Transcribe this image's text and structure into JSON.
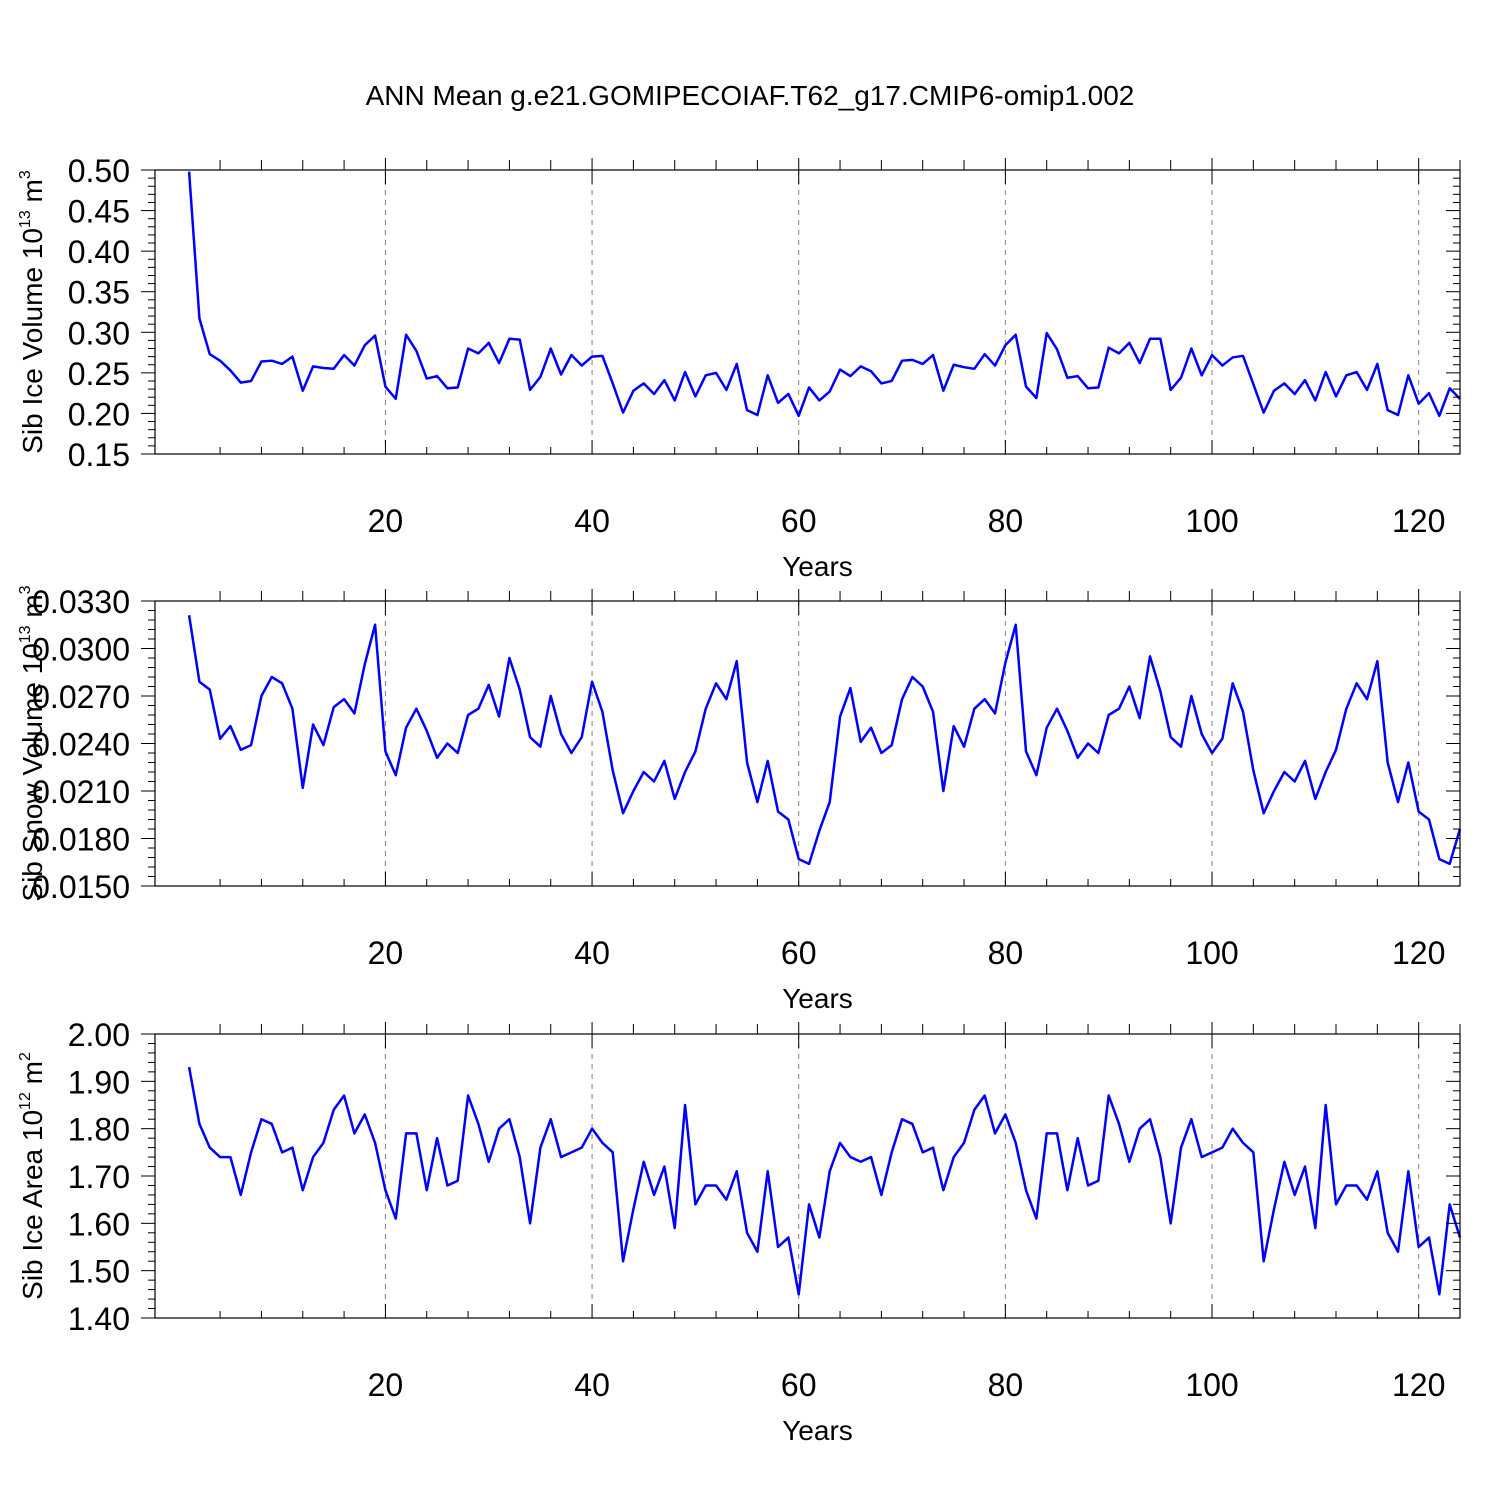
{
  "title": "ANN Mean g.e21.GOMIPECOIAF.T62_g17.CMIP6-omip1.002",
  "colors": {
    "series": "#0000ff",
    "frame": "#000000",
    "grid": "#808080"
  },
  "chart_data": [
    {
      "type": "line",
      "ylabel": {
        "main": "Sib Ice Volume 10",
        "sup": "13",
        "unit": " m",
        "unit_sup": "3"
      },
      "xlabel": "Years",
      "xlim": [
        -2.3,
        124
      ],
      "ylim": [
        0.15,
        0.5
      ],
      "xticks": [
        20,
        40,
        60,
        80,
        100,
        120
      ],
      "xtick_labels": [
        "20",
        "40",
        "60",
        "80",
        "100",
        "120"
      ],
      "yticks": [
        0.15,
        0.2,
        0.25,
        0.3,
        0.35,
        0.4,
        0.45,
        0.5
      ],
      "ytick_labels": [
        "0.15",
        "0.20",
        "0.25",
        "0.30",
        "0.35",
        "0.40",
        "0.45",
        "0.50"
      ],
      "grid_x": [
        20,
        40,
        60,
        80,
        100,
        120
      ],
      "series": [
        {
          "values": [
            0.498,
            0.317,
            0.273,
            0.265,
            0.253,
            0.238,
            0.24,
            0.264,
            0.265,
            0.261,
            0.27,
            0.228,
            0.258,
            0.256,
            0.255,
            0.272,
            0.259,
            0.284,
            0.296,
            0.233,
            0.218,
            0.297,
            0.277,
            0.243,
            0.246,
            0.231,
            0.232,
            0.28,
            0.274,
            0.287,
            0.262,
            0.292,
            0.291,
            0.229,
            0.245,
            0.28,
            0.248,
            0.272,
            0.259,
            0.27,
            0.271,
            0.237,
            0.201,
            0.228,
            0.237,
            0.224,
            0.241,
            0.216,
            0.251,
            0.221,
            0.247,
            0.25,
            0.229,
            0.261,
            0.204,
            0.198,
            0.247,
            0.213,
            0.224,
            0.197,
            0.232,
            0.216,
            0.227,
            0.254,
            0.246,
            0.258,
            0.252,
            0.237,
            0.24,
            0.265,
            0.266,
            0.261,
            0.272,
            0.228,
            0.26,
            0.257,
            0.255,
            0.273,
            0.259,
            0.284,
            0.297,
            0.233,
            0.219,
            0.299,
            0.279,
            0.244,
            0.246,
            0.231,
            0.232,
            0.281,
            0.274,
            0.287,
            0.262,
            0.292,
            0.292,
            0.229,
            0.244,
            0.28,
            0.247,
            0.272,
            0.259,
            0.269,
            0.271,
            0.236,
            0.201,
            0.228,
            0.237,
            0.224,
            0.241,
            0.216,
            0.251,
            0.221,
            0.247,
            0.251,
            0.229,
            0.261,
            0.204,
            0.198,
            0.247,
            0.212,
            0.225,
            0.197,
            0.231,
            0.218
          ]
        }
      ]
    },
    {
      "type": "line",
      "ylabel": {
        "main": "Sib Snow Volume 10",
        "sup": "13",
        "unit": " m",
        "unit_sup": "3"
      },
      "xlabel": "Years",
      "xlim": [
        -2.3,
        124
      ],
      "ylim": [
        0.015,
        0.033
      ],
      "xticks": [
        20,
        40,
        60,
        80,
        100,
        120
      ],
      "xtick_labels": [
        "20",
        "40",
        "60",
        "80",
        "100",
        "120"
      ],
      "yticks": [
        0.015,
        0.018,
        0.021,
        0.024,
        0.027,
        0.03,
        0.033
      ],
      "ytick_labels": [
        "0.0150",
        "0.0180",
        "0.0210",
        "0.0240",
        "0.0270",
        "0.0300",
        "0.0330"
      ],
      "grid_x": [
        20,
        40,
        60,
        80,
        100,
        120
      ],
      "series": [
        {
          "values": [
            0.0321,
            0.0279,
            0.0274,
            0.0243,
            0.0251,
            0.0236,
            0.0239,
            0.027,
            0.0282,
            0.0278,
            0.0262,
            0.0212,
            0.0252,
            0.0239,
            0.0263,
            0.0268,
            0.0259,
            0.029,
            0.0315,
            0.0235,
            0.022,
            0.025,
            0.0262,
            0.0248,
            0.0231,
            0.024,
            0.0234,
            0.0258,
            0.0262,
            0.0277,
            0.0257,
            0.0294,
            0.0274,
            0.0244,
            0.0238,
            0.027,
            0.0246,
            0.0234,
            0.0244,
            0.0279,
            0.026,
            0.0223,
            0.0196,
            0.021,
            0.0222,
            0.0216,
            0.0229,
            0.0205,
            0.0222,
            0.0235,
            0.0262,
            0.0278,
            0.0268,
            0.0292,
            0.0228,
            0.0203,
            0.0229,
            0.0197,
            0.0192,
            0.0167,
            0.0164,
            0.0185,
            0.0203,
            0.0257,
            0.0275,
            0.0241,
            0.025,
            0.0234,
            0.0239,
            0.0268,
            0.0282,
            0.0276,
            0.026,
            0.021,
            0.0251,
            0.0238,
            0.0262,
            0.0268,
            0.0259,
            0.0291,
            0.0315,
            0.0235,
            0.022,
            0.025,
            0.0262,
            0.0248,
            0.0231,
            0.024,
            0.0234,
            0.0258,
            0.0262,
            0.0276,
            0.0256,
            0.0295,
            0.0273,
            0.0244,
            0.0238,
            0.027,
            0.0246,
            0.0234,
            0.0243,
            0.0278,
            0.026,
            0.0223,
            0.0196,
            0.021,
            0.0222,
            0.0216,
            0.0229,
            0.0205,
            0.0222,
            0.0236,
            0.0262,
            0.0278,
            0.0268,
            0.0292,
            0.0228,
            0.0203,
            0.0228,
            0.0197,
            0.0192,
            0.0167,
            0.0164,
            0.0186
          ]
        }
      ]
    },
    {
      "type": "line",
      "ylabel": {
        "main": "Sib Ice Area 10",
        "sup": "12",
        "unit": " m",
        "unit_sup": "2"
      },
      "xlabel": "Years",
      "xlim": [
        -2.3,
        124
      ],
      "ylim": [
        1.4,
        2.0
      ],
      "xticks": [
        20,
        40,
        60,
        80,
        100,
        120
      ],
      "xtick_labels": [
        "20",
        "40",
        "60",
        "80",
        "100",
        "120"
      ],
      "yticks": [
        1.4,
        1.5,
        1.6,
        1.7,
        1.8,
        1.9,
        2.0
      ],
      "ytick_labels": [
        "1.40",
        "1.50",
        "1.60",
        "1.70",
        "1.80",
        "1.90",
        "2.00"
      ],
      "grid_x": [
        20,
        40,
        60,
        80,
        100,
        120
      ],
      "series": [
        {
          "values": [
            1.93,
            1.81,
            1.76,
            1.74,
            1.74,
            1.66,
            1.75,
            1.82,
            1.81,
            1.75,
            1.76,
            1.67,
            1.74,
            1.77,
            1.84,
            1.87,
            1.79,
            1.83,
            1.77,
            1.67,
            1.61,
            1.79,
            1.79,
            1.67,
            1.78,
            1.68,
            1.69,
            1.87,
            1.81,
            1.73,
            1.8,
            1.82,
            1.74,
            1.6,
            1.76,
            1.82,
            1.74,
            1.75,
            1.76,
            1.8,
            1.77,
            1.75,
            1.52,
            1.63,
            1.73,
            1.66,
            1.72,
            1.59,
            1.85,
            1.64,
            1.68,
            1.68,
            1.65,
            1.71,
            1.58,
            1.54,
            1.71,
            1.55,
            1.57,
            1.45,
            1.64,
            1.57,
            1.71,
            1.77,
            1.74,
            1.73,
            1.74,
            1.66,
            1.75,
            1.82,
            1.81,
            1.75,
            1.76,
            1.67,
            1.74,
            1.77,
            1.84,
            1.87,
            1.79,
            1.83,
            1.77,
            1.67,
            1.61,
            1.79,
            1.79,
            1.67,
            1.78,
            1.68,
            1.69,
            1.87,
            1.81,
            1.73,
            1.8,
            1.82,
            1.74,
            1.6,
            1.76,
            1.82,
            1.74,
            1.75,
            1.76,
            1.8,
            1.77,
            1.75,
            1.52,
            1.63,
            1.73,
            1.66,
            1.72,
            1.59,
            1.85,
            1.64,
            1.68,
            1.68,
            1.65,
            1.71,
            1.58,
            1.54,
            1.71,
            1.55,
            1.57,
            1.45,
            1.64,
            1.57
          ]
        }
      ]
    }
  ]
}
